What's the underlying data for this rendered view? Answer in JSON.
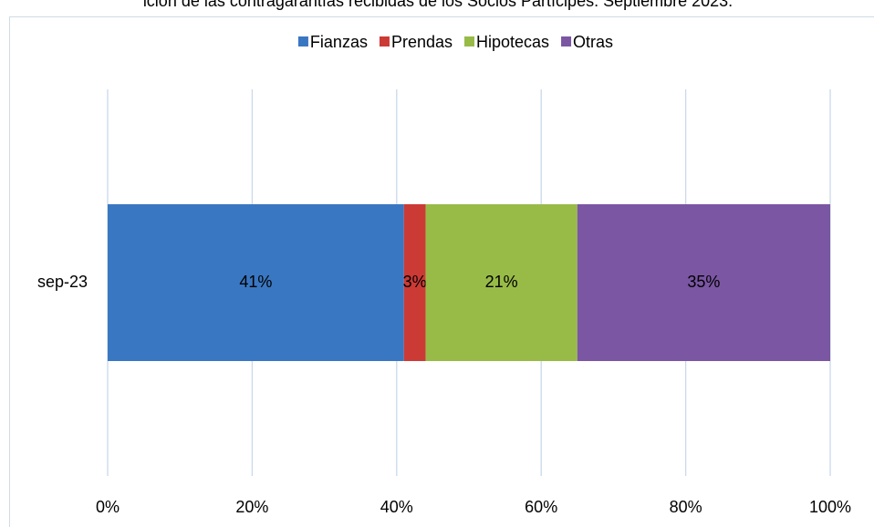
{
  "chart_data": {
    "type": "stacked-bar-horizontal",
    "title": "ición de las contragarantías recibidas de los Socios Partícipes. Septiembre 2023.",
    "categories": [
      "sep-23"
    ],
    "series": [
      {
        "name": "Fianzas",
        "color": "#3a77c2",
        "values": [
          41
        ],
        "value_labels": [
          "41%"
        ]
      },
      {
        "name": "Prendas",
        "color": "#cc3a36",
        "values": [
          3
        ],
        "value_labels": [
          "3%"
        ]
      },
      {
        "name": "Hipotecas",
        "color": "#98bb48",
        "values": [
          21
        ],
        "value_labels": [
          "21%"
        ]
      },
      {
        "name": "Otras",
        "color": "#7a56a3",
        "values": [
          35
        ],
        "value_labels": [
          "35%"
        ]
      }
    ],
    "xlim": [
      0,
      100
    ],
    "xticks": [
      {
        "value": 0,
        "label": "0%"
      },
      {
        "value": 20,
        "label": "20%"
      },
      {
        "value": 40,
        "label": "40%"
      },
      {
        "value": 60,
        "label": "60%"
      },
      {
        "value": 80,
        "label": "80%"
      },
      {
        "value": 100,
        "label": "100%"
      }
    ],
    "grid": true,
    "legend": "top"
  }
}
